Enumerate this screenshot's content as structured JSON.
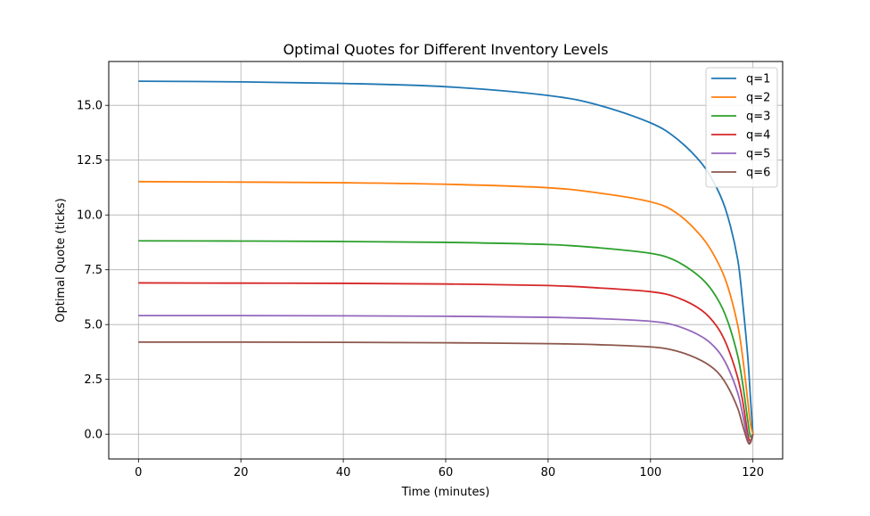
{
  "chart_data": {
    "type": "line",
    "title": "Optimal Quotes for Different Inventory Levels",
    "xlabel": "Time (minutes)",
    "ylabel": "Optimal Quote (ticks)",
    "xlim": [
      -5.8,
      125.8
    ],
    "ylim": [
      -1.13,
      17.0
    ],
    "xticks": [
      0,
      20,
      40,
      60,
      80,
      100,
      120
    ],
    "xtick_labels": [
      "0",
      "20",
      "40",
      "60",
      "80",
      "100",
      "120"
    ],
    "yticks": [
      0.0,
      2.5,
      5.0,
      7.5,
      10.0,
      12.5,
      15.0
    ],
    "ytick_labels": [
      "0.0",
      "2.5",
      "5.0",
      "7.5",
      "10.0",
      "12.5",
      "15.0"
    ],
    "grid": true,
    "legend_position": "top-right",
    "x": [
      0,
      20,
      40,
      60,
      80,
      90,
      100,
      105,
      110,
      113,
      115,
      117,
      118,
      119,
      119.5,
      120
    ],
    "series": [
      {
        "name": "q=1",
        "color": "#1f77b4",
        "values": [
          16.1,
          16.07,
          16.0,
          15.85,
          15.45,
          15.0,
          14.2,
          13.5,
          12.35,
          11.2,
          10.0,
          8.0,
          6.0,
          3.5,
          1.7,
          0.0
        ]
      },
      {
        "name": "q=2",
        "color": "#ff7f0e",
        "values": [
          11.52,
          11.5,
          11.47,
          11.4,
          11.24,
          11.0,
          10.6,
          10.1,
          9.0,
          7.9,
          6.8,
          5.0,
          3.5,
          1.5,
          0.5,
          0.0
        ]
      },
      {
        "name": "q=3",
        "color": "#2ca02c",
        "values": [
          8.82,
          8.81,
          8.79,
          8.75,
          8.65,
          8.5,
          8.25,
          7.9,
          7.1,
          6.2,
          5.2,
          3.6,
          2.3,
          0.6,
          -0.1,
          0.0
        ]
      },
      {
        "name": "q=4",
        "color": "#d62728",
        "values": [
          6.9,
          6.89,
          6.88,
          6.85,
          6.78,
          6.67,
          6.5,
          6.25,
          5.65,
          4.9,
          4.0,
          2.6,
          1.5,
          0.0,
          -0.3,
          0.0
        ]
      },
      {
        "name": "q=5",
        "color": "#9467bd",
        "values": [
          5.41,
          5.41,
          5.4,
          5.38,
          5.33,
          5.27,
          5.15,
          4.95,
          4.45,
          3.85,
          3.1,
          1.9,
          0.9,
          -0.25,
          -0.35,
          0.0
        ]
      },
      {
        "name": "q=6",
        "color": "#8c564b",
        "values": [
          4.2,
          4.2,
          4.19,
          4.17,
          4.13,
          4.08,
          3.98,
          3.8,
          3.35,
          2.85,
          2.2,
          1.2,
          0.4,
          -0.35,
          -0.4,
          0.0
        ]
      }
    ]
  }
}
